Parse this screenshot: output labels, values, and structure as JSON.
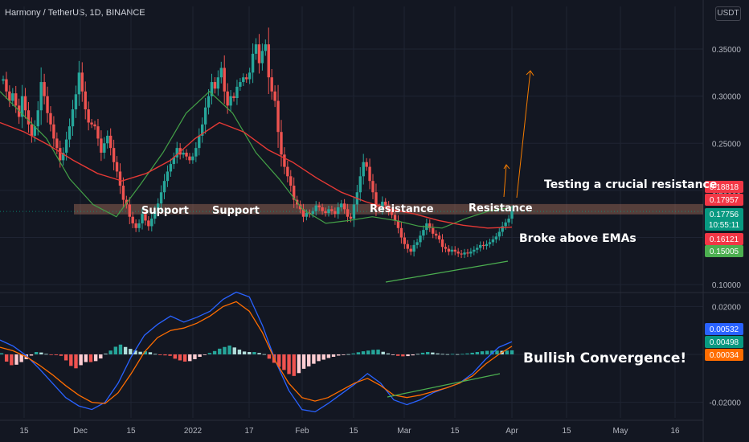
{
  "header": {
    "symbol": "Harmony / TetherUS, 1D, BINANCE",
    "currency": "USDT"
  },
  "chart_data": [
    {
      "type": "candlestick",
      "title": "Harmony / TetherUS, 1D, BINANCE",
      "y_ticks": [
        "0.35000",
        "0.30000",
        "0.25000",
        "0.20000",
        "0.15000",
        "0.10000"
      ],
      "ylim": [
        0.095,
        0.385
      ],
      "x_ticks": [
        "15",
        "Dec",
        "15",
        "2022",
        "17",
        "Feb",
        "15",
        "Mar",
        "15",
        "Apr",
        "15",
        "May",
        "16"
      ],
      "price_tags": [
        {
          "label": "0.18818",
          "color": "#f23645"
        },
        {
          "label": "0.17957",
          "color": "#f23645"
        },
        {
          "label": "0.17756",
          "sub": "10:55:11",
          "color": "#089981"
        },
        {
          "label": "0.16121",
          "color": "#f23645"
        },
        {
          "label": "0.15005",
          "color": "#4caf50"
        }
      ],
      "series": [
        {
          "name": "Price",
          "values": [
            0.318,
            0.305,
            0.295,
            0.303,
            0.29,
            0.278,
            0.3,
            0.285,
            0.27,
            0.258,
            0.268,
            0.285,
            0.315,
            0.3,
            0.282,
            0.27,
            0.255,
            0.245,
            0.232,
            0.24,
            0.254,
            0.268,
            0.286,
            0.302,
            0.325,
            0.305,
            0.286,
            0.272,
            0.27,
            0.268,
            0.255,
            0.24,
            0.25,
            0.258,
            0.245,
            0.23,
            0.22,
            0.205,
            0.19,
            0.185,
            0.172,
            0.165,
            0.16,
            0.165,
            0.175,
            0.168,
            0.162,
            0.17,
            0.178,
            0.186,
            0.198,
            0.21,
            0.22,
            0.228,
            0.235,
            0.245,
            0.238,
            0.24,
            0.236,
            0.232,
            0.236,
            0.245,
            0.258,
            0.27,
            0.288,
            0.3,
            0.315,
            0.308,
            0.32,
            0.33,
            0.305,
            0.29,
            0.3,
            0.298,
            0.31,
            0.315,
            0.32,
            0.318,
            0.325,
            0.345,
            0.355,
            0.335,
            0.348,
            0.355,
            0.32,
            0.305,
            0.295,
            0.262,
            0.238,
            0.225,
            0.215,
            0.205,
            0.19,
            0.185,
            0.18,
            0.172,
            0.176,
            0.175,
            0.178,
            0.184,
            0.182,
            0.178,
            0.176,
            0.18,
            0.178,
            0.175,
            0.182,
            0.186,
            0.18,
            0.172,
            0.17,
            0.185,
            0.198,
            0.215,
            0.23,
            0.225,
            0.21,
            0.198,
            0.182,
            0.18,
            0.188,
            0.184,
            0.178,
            0.174,
            0.168,
            0.16,
            0.15,
            0.143,
            0.138,
            0.135,
            0.142,
            0.145,
            0.152,
            0.158,
            0.165,
            0.16,
            0.154,
            0.152,
            0.148,
            0.14,
            0.138,
            0.135,
            0.137,
            0.135,
            0.133,
            0.132,
            0.134,
            0.133,
            0.135,
            0.137,
            0.139,
            0.142,
            0.141,
            0.143,
            0.145,
            0.148,
            0.151,
            0.156,
            0.162,
            0.166,
            0.17,
            0.178
          ]
        },
        {
          "name": "EMA fast",
          "values": [
            0.305,
            0.28,
            0.255,
            0.212,
            0.185,
            0.172,
            0.205,
            0.24,
            0.282,
            0.305,
            0.282,
            0.24,
            0.212,
            0.18,
            0.165,
            0.168,
            0.172,
            0.168,
            0.162,
            0.16,
            0.17,
            0.178,
            0.182
          ]
        },
        {
          "name": "EMA slow",
          "values": [
            0.272,
            0.262,
            0.248,
            0.232,
            0.218,
            0.21,
            0.218,
            0.232,
            0.255,
            0.272,
            0.262,
            0.243,
            0.23,
            0.213,
            0.198,
            0.188,
            0.18,
            0.175,
            0.168,
            0.163,
            0.16,
            0.161
          ]
        }
      ],
      "annotations": [
        "Support",
        "Support",
        "Resistance",
        "Resistance",
        "Testing a crucial resistance",
        "Broke above EMAs"
      ]
    },
    {
      "type": "histogram",
      "title": "MACD",
      "y_ticks": [
        "0.02000",
        "0.00000",
        "-0.02000"
      ],
      "ylim": [
        -0.0265,
        0.0265
      ],
      "price_tags": [
        {
          "label": "0.00532",
          "color": "#2962ff"
        },
        {
          "label": "0.00498",
          "color": "#089981"
        },
        {
          "label": "0.00034",
          "color": "#ff6d00"
        }
      ],
      "series": [
        {
          "name": "Histogram",
          "values": [
            0.0005,
            -0.003,
            -0.0045,
            -0.0043,
            -0.0032,
            -0.002,
            -0.0005,
            0.001,
            0.0008,
            0.0002,
            -0.0002,
            -0.0003,
            -0.0006,
            -0.0025,
            -0.0048,
            -0.0058,
            -0.0045,
            -0.0032,
            -0.0032,
            -0.0028,
            -0.0017,
            0.0003,
            0.0016,
            0.0032,
            0.0041,
            0.0031,
            0.0023,
            0.0016,
            0.0011,
            0.0013,
            0.0009,
            0.0002,
            -0.0003,
            -0.0004,
            -0.0006,
            -0.0018,
            -0.0025,
            -0.003,
            -0.0028,
            -0.002,
            -0.001,
            -0.0002,
            0.0006,
            0.0014,
            0.0024,
            0.0031,
            0.0037,
            0.0029,
            0.002,
            0.0012,
            0.001,
            0.001,
            0.0006,
            0.0001,
            -0.0018,
            -0.0035,
            -0.0052,
            -0.0065,
            -0.0082,
            -0.009,
            -0.0078,
            -0.006,
            -0.005,
            -0.0039,
            -0.0028,
            -0.0022,
            -0.0015,
            -0.001,
            -0.0005,
            -0.0002,
            0.0001,
            0.0004,
            0.0009,
            0.0013,
            0.0016,
            0.0019,
            0.002,
            0.0011,
            0.0004,
            -0.0002,
            -0.0006,
            -0.0008,
            -0.0007,
            -0.0004,
            0.0002,
            0.0007,
            0.001,
            0.0008,
            0.0004,
            0.0002,
            0.0001,
            0.0002,
            0.0001,
            0.0002,
            0.0004,
            0.0007,
            0.001,
            0.0013,
            0.0015,
            0.0016,
            0.0016,
            0.0015,
            0.0016,
            0.0017
          ]
        },
        {
          "name": "MACD",
          "values": [
            0.006,
            0.0035,
            -0.0005,
            -0.006,
            -0.012,
            -0.018,
            -0.0215,
            -0.023,
            -0.02,
            -0.012,
            -0.001,
            0.008,
            0.0125,
            0.016,
            0.0135,
            0.0155,
            0.018,
            0.023,
            0.026,
            0.024,
            0.012,
            -0.003,
            -0.015,
            -0.023,
            -0.024,
            -0.0205,
            -0.0165,
            -0.0125,
            -0.008,
            -0.012,
            -0.019,
            -0.021,
            -0.019,
            -0.016,
            -0.014,
            -0.012,
            -0.008,
            -0.002,
            0.003,
            0.0053
          ]
        },
        {
          "name": "Signal",
          "values": [
            0.003,
            0.0015,
            -0.001,
            -0.0045,
            -0.0085,
            -0.013,
            -0.017,
            -0.02,
            -0.0205,
            -0.016,
            -0.008,
            0.001,
            0.007,
            0.01,
            0.011,
            0.013,
            0.016,
            0.02,
            0.022,
            0.018,
            0.009,
            -0.003,
            -0.012,
            -0.018,
            -0.0195,
            -0.018,
            -0.015,
            -0.012,
            -0.01,
            -0.013,
            -0.017,
            -0.018,
            -0.017,
            -0.0155,
            -0.014,
            -0.012,
            -0.009,
            -0.004,
            0.0,
            0.0034
          ]
        }
      ],
      "annotations": [
        "Bullish Convergence!"
      ]
    }
  ]
}
